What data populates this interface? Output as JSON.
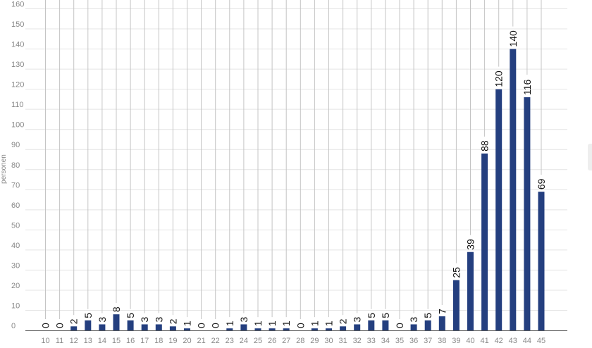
{
  "chart_data": {
    "type": "bar",
    "ylabel": "personen",
    "xlabel": "",
    "ylim": [
      0,
      160
    ],
    "yticks": [
      0,
      10,
      20,
      30,
      40,
      50,
      60,
      70,
      80,
      90,
      100,
      110,
      120,
      130,
      140,
      150,
      160
    ],
    "categories": [
      "10",
      "11",
      "12",
      "13",
      "14",
      "15",
      "16",
      "17",
      "18",
      "19",
      "20",
      "21",
      "22",
      "23",
      "24",
      "25",
      "26",
      "27",
      "28",
      "29",
      "30",
      "31",
      "32",
      "33",
      "34",
      "35",
      "36",
      "37",
      "38",
      "39",
      "40",
      "41",
      "42",
      "43",
      "44",
      "45"
    ],
    "values": [
      0,
      0,
      2,
      5,
      3,
      8,
      5,
      3,
      3,
      2,
      1,
      0,
      0,
      1,
      3,
      1,
      1,
      1,
      0,
      1,
      1,
      2,
      3,
      5,
      5,
      0,
      3,
      5,
      7,
      25,
      39,
      88,
      120,
      140,
      116,
      69
    ],
    "grid": true,
    "legend": "none",
    "colors": {
      "bar": "#243f7f",
      "grid": "#e4e4e4",
      "vline": "#c4c4c4",
      "axis": "#555555"
    }
  }
}
